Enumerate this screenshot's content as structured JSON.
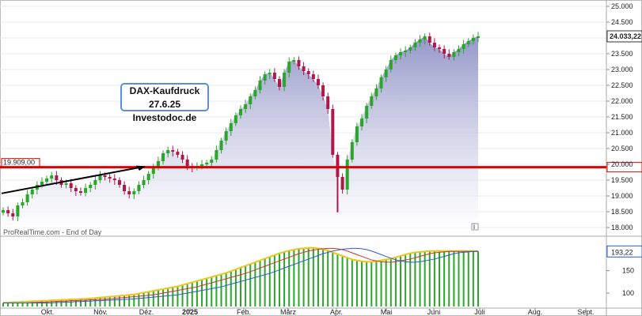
{
  "chart_data": [
    {
      "type": "candlestick",
      "annotation": [
        "DAX-Kaufdruck 27.6.25",
        "Investodoc.de"
      ],
      "watermark": "ProRealTime.com - End of Day",
      "ylim": [
        17900,
        25050
      ],
      "y_ticks": [
        "25.000",
        "24.500",
        "24.000",
        "23.500",
        "23.000",
        "22.500",
        "22.000",
        "21.500",
        "21.000",
        "20.500",
        "20.000",
        "19.500",
        "19.000",
        "18.500",
        "18.000"
      ],
      "last_price_label": "24.033,22",
      "support_level": 19909,
      "support_label": "19.909,00",
      "colors": {
        "up": "#2aa62a",
        "down": "#b0174a",
        "support": "#e00000",
        "area": "#8f92c6"
      },
      "months": [
        "Okt.",
        "Nov.",
        "Dez.",
        "2025",
        "Feb.",
        "März",
        "Apr.",
        "Mai",
        "Juni",
        "Juli",
        "Aug.",
        "Sept."
      ],
      "closes": [
        18550,
        18450,
        18350,
        18700,
        18800,
        19050,
        19200,
        19350,
        19450,
        19550,
        19650,
        19500,
        19350,
        19400,
        19250,
        19150,
        19100,
        19250,
        19350,
        19500,
        19650,
        19600,
        19550,
        19500,
        19350,
        19150,
        19050,
        19150,
        19350,
        19500,
        19700,
        19900,
        20100,
        20350,
        20450,
        20400,
        20300,
        20150,
        19950,
        19900,
        19950,
        20000,
        20050,
        20150,
        20450,
        20750,
        21050,
        21300,
        21550,
        21750,
        21900,
        22150,
        22350,
        22650,
        22850,
        22900,
        22700,
        22450,
        22900,
        23250,
        23300,
        23100,
        22950,
        22850,
        22700,
        22500,
        22150,
        21750,
        20300,
        19600,
        19200,
        20150,
        20700,
        21200,
        21450,
        21850,
        22150,
        22400,
        22750,
        23000,
        23300,
        23450,
        23550,
        23600,
        23700,
        23850,
        23950,
        24050,
        23850,
        23700,
        23650,
        23500,
        23400,
        23550,
        23650,
        23800,
        23900,
        24000,
        24050
      ],
      "volume_ylim": [
        70,
        220
      ],
      "volume_ticks": [
        "150",
        "100"
      ],
      "volume_label": "193,22",
      "volume_colors": {
        "bars": "#2aa62a",
        "fast": "#e8c818",
        "slow": "#2a5bd8",
        "mid": "#d83030"
      },
      "volume_values": [
        78,
        78,
        79,
        79,
        80,
        80,
        81,
        81,
        82,
        82,
        83,
        83,
        84,
        84,
        85,
        85,
        86,
        86,
        87,
        88,
        89,
        90,
        91,
        92,
        93,
        94,
        95,
        96,
        98,
        100,
        102,
        104,
        106,
        108,
        110,
        112,
        114,
        117,
        120,
        123,
        126,
        129,
        132,
        135,
        138,
        141,
        144,
        148,
        152,
        156,
        160,
        164,
        168,
        172,
        176,
        180,
        184,
        188,
        191,
        194,
        196,
        198,
        199,
        200,
        200,
        199,
        197,
        194,
        190,
        186,
        182,
        178,
        174,
        172,
        170,
        169,
        169,
        170,
        172,
        174,
        176,
        179,
        182,
        185,
        188,
        190,
        191,
        192,
        193,
        193,
        193,
        193,
        193,
        193,
        193,
        193,
        193,
        193,
        193
      ]
    }
  ]
}
